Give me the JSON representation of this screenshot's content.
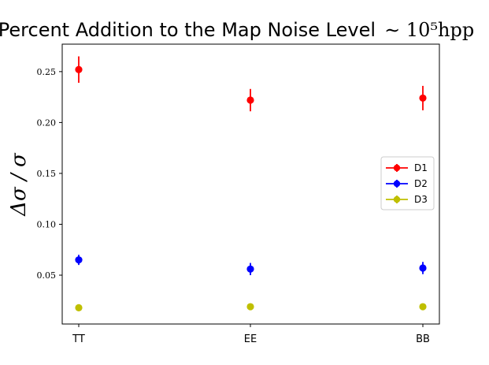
{
  "chart_data": {
    "type": "scatter",
    "title": "Percent Addition to the Map Noise Level",
    "title_math": "∼ 10⁵hpp",
    "ylabel": "Δσ / σ",
    "xlabel": "",
    "categories": [
      "TT",
      "EE",
      "BB"
    ],
    "yticks": [
      0.05,
      0.1,
      0.15,
      0.2,
      0.25
    ],
    "ytick_labels": [
      "0.05",
      "0.10",
      "0.15",
      "0.20",
      "0.25"
    ],
    "ylim": [
      0.002,
      0.277
    ],
    "grid": false,
    "legend_position": "center-right",
    "series": [
      {
        "name": "D1",
        "color": "#ff0000",
        "values": [
          0.252,
          0.222,
          0.224
        ],
        "errors": [
          0.013,
          0.011,
          0.012
        ]
      },
      {
        "name": "D2",
        "color": "#0000ff",
        "values": [
          0.065,
          0.056,
          0.057
        ],
        "errors": [
          0.005,
          0.006,
          0.006
        ]
      },
      {
        "name": "D3",
        "color": "#bfbf00",
        "values": [
          0.018,
          0.019,
          0.019
        ],
        "errors": [
          0.002,
          0.002,
          0.002
        ]
      }
    ]
  }
}
